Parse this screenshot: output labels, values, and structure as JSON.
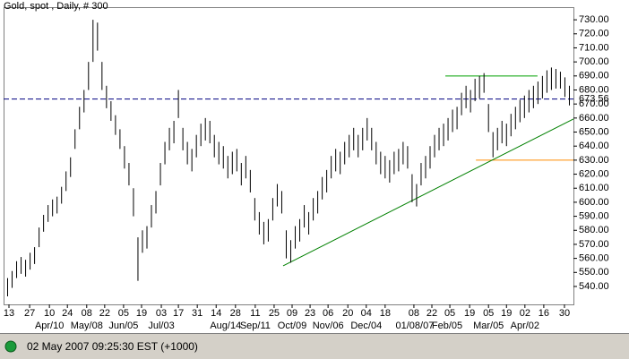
{
  "chart_data": {
    "type": "ohlc",
    "title": "Gold, spot , Daily, # 300",
    "color": "#000000",
    "high": [
      546,
      551,
      558,
      561,
      559,
      564,
      568,
      582,
      591,
      598,
      602,
      604,
      611,
      622,
      632,
      652,
      668,
      680,
      700,
      730,
      728,
      700,
      683,
      672,
      662,
      652,
      640,
      628,
      610,
      575,
      580,
      583,
      598,
      608,
      628,
      643,
      653,
      658,
      680,
      653,
      643,
      638,
      648,
      656,
      660,
      658,
      648,
      643,
      640,
      633,
      636,
      638,
      628,
      633,
      623,
      603,
      593,
      586,
      588,
      603,
      613,
      608,
      580,
      573,
      583,
      588,
      598,
      593,
      603,
      608,
      618,
      623,
      633,
      638,
      636,
      643,
      648,
      653,
      648,
      653,
      660,
      653,
      643,
      636,
      633,
      630,
      636,
      638,
      643,
      640,
      620,
      613,
      628,
      633,
      640,
      648,
      653,
      656,
      660,
      666,
      668,
      678,
      683,
      680,
      688,
      690,
      692,
      670,
      650,
      653,
      658,
      656,
      663,
      668,
      673,
      676,
      680,
      683,
      686,
      690,
      694,
      696,
      695,
      693,
      689,
      683
    ],
    "low": [
      533,
      539,
      546,
      549,
      547,
      552,
      556,
      568,
      579,
      586,
      590,
      592,
      599,
      608,
      618,
      638,
      652,
      664,
      680,
      700,
      708,
      680,
      667,
      658,
      648,
      638,
      624,
      612,
      590,
      544,
      564,
      567,
      582,
      592,
      612,
      627,
      637,
      642,
      660,
      637,
      627,
      622,
      632,
      640,
      644,
      642,
      632,
      627,
      624,
      617,
      620,
      622,
      612,
      617,
      607,
      587,
      577,
      570,
      572,
      587,
      597,
      592,
      560,
      557,
      567,
      572,
      582,
      577,
      587,
      592,
      602,
      607,
      617,
      622,
      620,
      627,
      632,
      637,
      632,
      637,
      644,
      637,
      627,
      620,
      617,
      614,
      620,
      622,
      627,
      624,
      600,
      597,
      612,
      617,
      624,
      632,
      637,
      640,
      644,
      650,
      652,
      662,
      667,
      664,
      672,
      674,
      678,
      650,
      632,
      637,
      642,
      640,
      647,
      652,
      657,
      660,
      664,
      667,
      670,
      674,
      678,
      680,
      681,
      681,
      675,
      669
    ],
    "xlim": [
      0,
      126
    ],
    "ylim": [
      528.5,
      739
    ],
    "yticks": [
      {
        "value": 540,
        "label": "540.00"
      },
      {
        "value": 550,
        "label": "550.00"
      },
      {
        "value": 560,
        "label": "560.00"
      },
      {
        "value": 570,
        "label": "570.00"
      },
      {
        "value": 580,
        "label": "580.00"
      },
      {
        "value": 590,
        "label": "590.00"
      },
      {
        "value": 600,
        "label": "600.00"
      },
      {
        "value": 610,
        "label": "610.00"
      },
      {
        "value": 620,
        "label": "620.00"
      },
      {
        "value": 630,
        "label": "630.00"
      },
      {
        "value": 640,
        "label": "640.00"
      },
      {
        "value": 650,
        "label": "650.00"
      },
      {
        "value": 660,
        "label": "660.00"
      },
      {
        "value": 670,
        "label": "670.00"
      },
      {
        "value": 680,
        "label": "680.00"
      },
      {
        "value": 690,
        "label": "690.00"
      },
      {
        "value": 700,
        "label": "700.00"
      },
      {
        "value": 710,
        "label": "710.00"
      },
      {
        "value": 720,
        "label": "720.00"
      },
      {
        "value": 730,
        "label": "730.00"
      }
    ],
    "xticks": [
      {
        "value": 0.4,
        "label": "13"
      },
      {
        "value": 5,
        "label": "27"
      },
      {
        "value": 9.4,
        "label": "10"
      },
      {
        "value": 13.4,
        "label": "24"
      },
      {
        "value": 17.7,
        "label": "08"
      },
      {
        "value": 21.7,
        "label": "22"
      },
      {
        "value": 25.9,
        "label": "05"
      },
      {
        "value": 29.9,
        "label": "19"
      },
      {
        "value": 34.3,
        "label": "03"
      },
      {
        "value": 38.1,
        "label": "17"
      },
      {
        "value": 42.3,
        "label": "31"
      },
      {
        "value": 46.5,
        "label": "14"
      },
      {
        "value": 50.8,
        "label": "28"
      },
      {
        "value": 55.2,
        "label": "11"
      },
      {
        "value": 59.4,
        "label": "25"
      },
      {
        "value": 63.4,
        "label": "09"
      },
      {
        "value": 67.4,
        "label": "23"
      },
      {
        "value": 71.4,
        "label": "06"
      },
      {
        "value": 75.8,
        "label": "20"
      },
      {
        "value": 79.9,
        "label": "04"
      },
      {
        "value": 84.1,
        "label": "18"
      },
      {
        "value": 90.5,
        "label": "08"
      },
      {
        "value": 94.5,
        "label": "22"
      },
      {
        "value": 98.5,
        "label": "05"
      },
      {
        "value": 102.9,
        "label": "19"
      },
      {
        "value": 107.1,
        "label": "05"
      },
      {
        "value": 111.1,
        "label": "19"
      },
      {
        "value": 115.2,
        "label": "02"
      },
      {
        "value": 119.4,
        "label": "16"
      },
      {
        "value": 124,
        "label": "30"
      }
    ],
    "xticks2": [
      {
        "value": 9.4,
        "label": "Apr/10"
      },
      {
        "value": 17.7,
        "label": "May/08"
      },
      {
        "value": 25.9,
        "label": "Jun/05"
      },
      {
        "value": 34.3,
        "label": "Jul/03"
      },
      {
        "value": 48.6,
        "label": "Aug/14"
      },
      {
        "value": 55.2,
        "label": "Sep/11"
      },
      {
        "value": 63.4,
        "label": "Oct/09"
      },
      {
        "value": 71.4,
        "label": "Nov/06"
      },
      {
        "value": 79.9,
        "label": "Dec/04"
      },
      {
        "value": 90.7,
        "label": "01/08/07"
      },
      {
        "value": 97.9,
        "label": "Feb/05"
      },
      {
        "value": 107.1,
        "label": "Mar/05"
      },
      {
        "value": 115.2,
        "label": "Apr/02"
      }
    ],
    "last_price": 673.56,
    "last_price_color": "#000080",
    "hlines": [
      {
        "value": 690,
        "x": [
          97.5,
          118
        ],
        "color": "#00a000"
      },
      {
        "value": 630,
        "x": [
          104.3,
          126
        ],
        "color": "#ff8c00"
      }
    ],
    "trendline": {
      "x": [
        61.4,
        126
      ],
      "values": [
        554.7,
        659.3
      ],
      "color": "#008000"
    }
  },
  "status": {
    "text": "02 May 2007 09:25:30 EST (+1000)"
  }
}
